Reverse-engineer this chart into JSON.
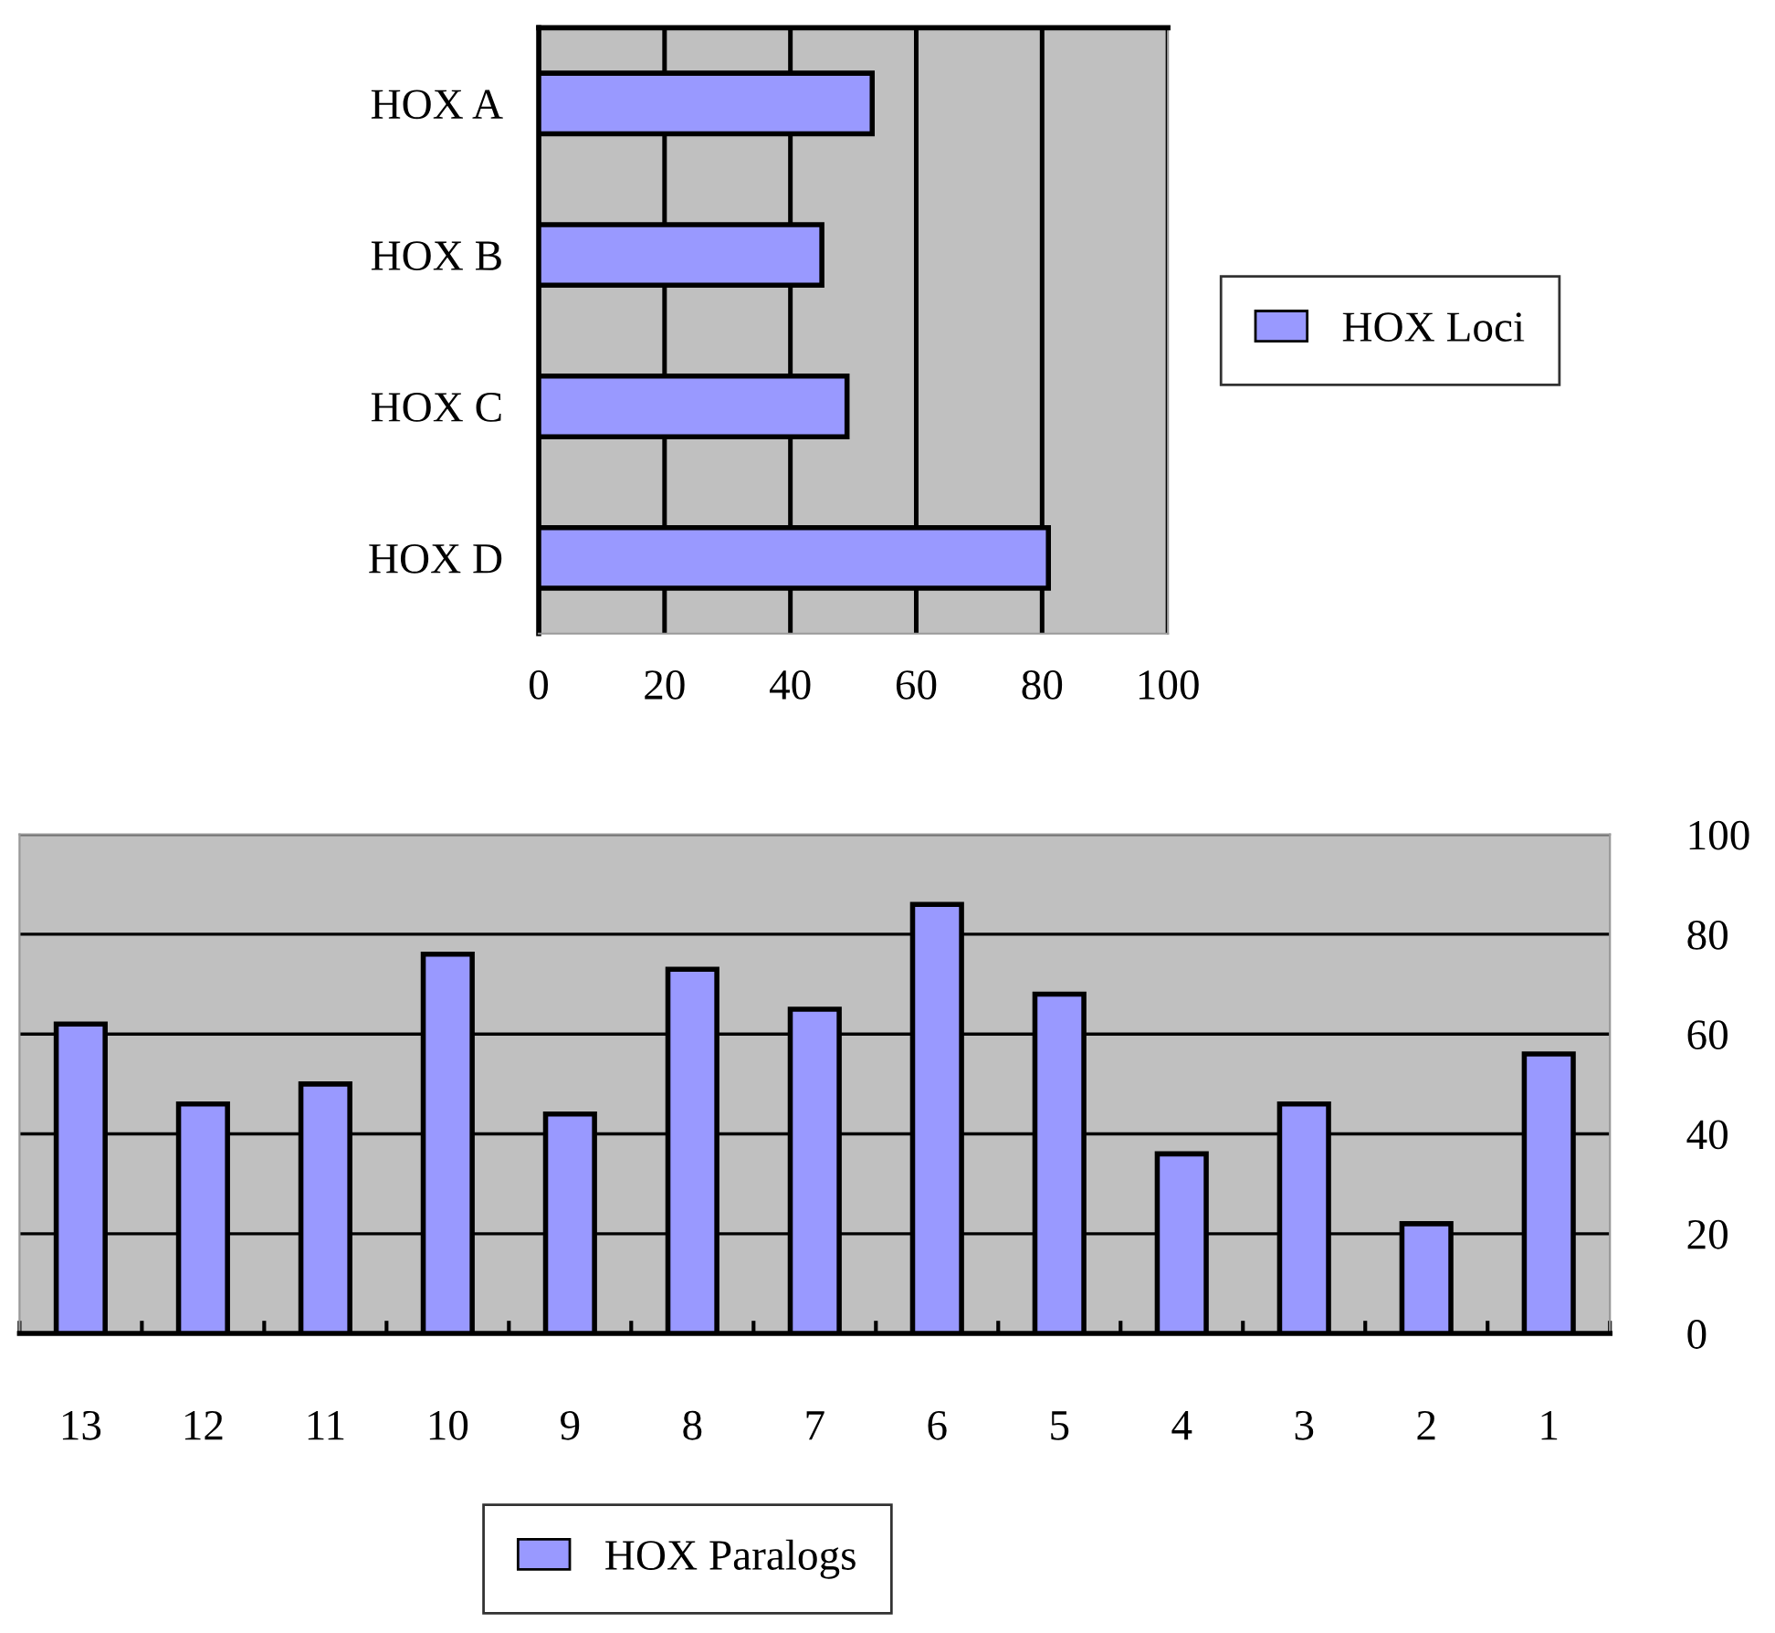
{
  "chart_data": [
    {
      "type": "bar",
      "orientation": "horizontal",
      "categories": [
        "HOX A",
        "HOX B",
        "HOX C",
        "HOX D"
      ],
      "series": [
        {
          "name": "HOX Loci",
          "color": "#9999ff",
          "values": [
            53,
            45,
            49,
            81
          ]
        }
      ],
      "xlim": [
        0,
        100
      ],
      "xticks": [
        0,
        20,
        40,
        60,
        80,
        100
      ],
      "grid": "x",
      "legend": "right"
    },
    {
      "type": "bar",
      "categories": [
        "13",
        "12",
        "11",
        "10",
        "9",
        "8",
        "7",
        "6",
        "5",
        "4",
        "3",
        "2",
        "1"
      ],
      "series": [
        {
          "name": "HOX Paralogs",
          "color": "#9999ff",
          "values": [
            62,
            46,
            50,
            76,
            44,
            73,
            65,
            86,
            68,
            36,
            46,
            22,
            56
          ]
        }
      ],
      "ylim": [
        0,
        100
      ],
      "yticks": [
        0,
        20,
        40,
        60,
        80,
        100
      ],
      "grid": "y",
      "legend": "bottom"
    }
  ]
}
